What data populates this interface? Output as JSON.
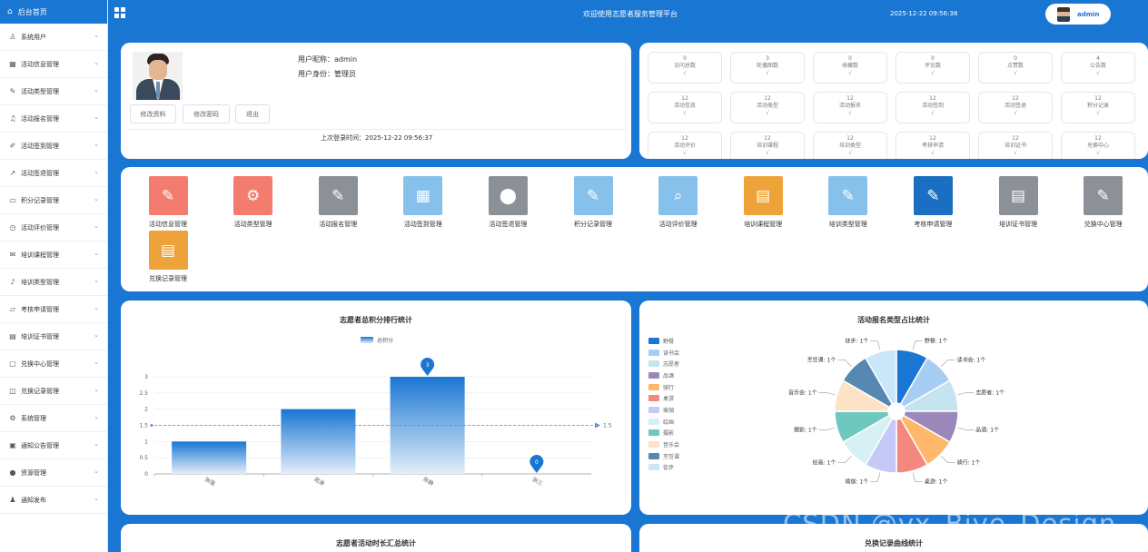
{
  "sidebar": {
    "home_label": "后台首页",
    "items": [
      {
        "label": "系统用户",
        "icon": "user-icon"
      },
      {
        "label": "活动信息管理",
        "icon": "grid-icon"
      },
      {
        "label": "活动类型管理",
        "icon": "edit-icon"
      },
      {
        "label": "活动报名管理",
        "icon": "headset-icon"
      },
      {
        "label": "活动签到管理",
        "icon": "edit-square-icon"
      },
      {
        "label": "活动签退管理",
        "icon": "chart-icon"
      },
      {
        "label": "积分记录管理",
        "icon": "box-icon"
      },
      {
        "label": "活动评价管理",
        "icon": "clock-icon"
      },
      {
        "label": "培训课程管理",
        "icon": "mail-icon"
      },
      {
        "label": "培训类型管理",
        "icon": "bell-icon"
      },
      {
        "label": "考核申请管理",
        "icon": "folder-icon"
      },
      {
        "label": "培训证书管理",
        "icon": "printer-icon"
      },
      {
        "label": "兑换中心管理",
        "icon": "message-icon"
      },
      {
        "label": "兑换记录管理",
        "icon": "bag-icon"
      },
      {
        "label": "系统管理",
        "icon": "gear-icon"
      },
      {
        "label": "通知公告管理",
        "icon": "calendar-icon"
      },
      {
        "label": "资源管理",
        "icon": "location-icon"
      },
      {
        "label": "通知发布",
        "icon": "person-icon"
      }
    ]
  },
  "topbar": {
    "title": "欢迎使用志愿者服务管理平台",
    "time": "2025-12-22 09:56:38",
    "username": "admin"
  },
  "profile": {
    "nickname_line": "用户昵称：admin",
    "role_line": "用户身份：管理员",
    "buttons": [
      "修改资料",
      "修改密码",
      "退出"
    ],
    "last_login": "上次登录时间：2025-12-22 09:56:37"
  },
  "stats": [
    {
      "value": "0",
      "label": "访问总数"
    },
    {
      "value": "3",
      "label": "轮播图数"
    },
    {
      "value": "0",
      "label": "收藏数"
    },
    {
      "value": "0",
      "label": "评论数"
    },
    {
      "value": "0",
      "label": "点赞数"
    },
    {
      "value": "4",
      "label": "公告数"
    },
    {
      "value": "12",
      "label": "活动信息"
    },
    {
      "value": "12",
      "label": "活动类型"
    },
    {
      "value": "12",
      "label": "活动报名"
    },
    {
      "value": "12",
      "label": "活动签到"
    },
    {
      "value": "12",
      "label": "活动签退"
    },
    {
      "value": "12",
      "label": "积分记录"
    },
    {
      "value": "12",
      "label": "活动评价"
    },
    {
      "value": "12",
      "label": "培训课程"
    },
    {
      "value": "12",
      "label": "培训类型"
    },
    {
      "value": "12",
      "label": "考核申请"
    },
    {
      "value": "12",
      "label": "培训证书"
    },
    {
      "value": "12",
      "label": "兑换中心"
    }
  ],
  "stat_check": "√",
  "modules": [
    {
      "label": "活动信息管理",
      "color": "#f47c6e",
      "icon": "pen-icon"
    },
    {
      "label": "活动类型管理",
      "color": "#f47c6e",
      "icon": "gear-icon"
    },
    {
      "label": "活动报名管理",
      "color": "#8c9097",
      "icon": "pen-icon"
    },
    {
      "label": "活动签到管理",
      "color": "#85c1ea",
      "icon": "grid-icon"
    },
    {
      "label": "活动签退管理",
      "color": "#8c9097",
      "icon": "location-icon"
    },
    {
      "label": "积分记录管理",
      "color": "#85c1ea",
      "icon": "pen-icon"
    },
    {
      "label": "活动评价管理",
      "color": "#85c1ea",
      "icon": "search-icon"
    },
    {
      "label": "培训课程管理",
      "color": "#eea33a",
      "icon": "document-icon"
    },
    {
      "label": "培训类型管理",
      "color": "#85c1ea",
      "icon": "pen-icon"
    },
    {
      "label": "考核申请管理",
      "color": "#1b6fc2",
      "icon": "pen-icon"
    },
    {
      "label": "培训证书管理",
      "color": "#8c9097",
      "icon": "document-icon"
    },
    {
      "label": "兑换中心管理",
      "color": "#8c9097",
      "icon": "pen-icon"
    },
    {
      "label": "兑换记录管理",
      "color": "#eea33a",
      "icon": "document-icon"
    }
  ],
  "chart_data": [
    {
      "type": "bar",
      "title": "志愿者总积分排行统计",
      "categories": [
        "张强",
        "周涛",
        "陈静",
        "张三"
      ],
      "series": [
        {
          "name": "总积分",
          "values": [
            1,
            2,
            3,
            0
          ]
        }
      ],
      "ylim": [
        0,
        3
      ],
      "yticks": [
        "0",
        "0.5",
        "1",
        "1.5",
        "2",
        "2.5",
        "3"
      ],
      "average": 1.5,
      "average_label": "1.5",
      "max_marker": "3",
      "min_marker": "0",
      "legend": "top-center",
      "grid": true
    },
    {
      "type": "pie",
      "title": "活动报名类型占比统计",
      "categories": [
        "野餐",
        "读书会",
        "志愿者",
        "品酒",
        "骑行",
        "桌游",
        "瑜伽",
        "绘画",
        "摄影",
        "音乐会",
        "烹饪课",
        "徒步"
      ],
      "values": [
        1,
        1,
        1,
        1,
        1,
        1,
        1,
        1,
        1,
        1,
        1,
        1
      ],
      "labels": [
        "野餐: 1个",
        "读书会: 1个",
        "志愿者: 1个",
        "品酒: 1个",
        "骑行: 1个",
        "桌游: 1个",
        "瑜伽: 1个",
        "绘画: 1个",
        "摄影: 1个",
        "音乐会: 1个",
        "烹饪课: 1个",
        "徒步: 1个"
      ],
      "colors": [
        "#1976d2",
        "#a7cdf5",
        "#c5e4f0",
        "#9c87ba",
        "#ffb86b",
        "#f4887e",
        "#c5c9f7",
        "#d6f0f4",
        "#6fc8c0",
        "#fce3c5",
        "#5688b1",
        "#c9e6fa"
      ],
      "legend": "left"
    }
  ],
  "bottom": {
    "left_title": "志愿者活动时长汇总统计",
    "right_title": "兑换记录曲线统计"
  },
  "watermark": "CSDN @vx_Biye_Design"
}
